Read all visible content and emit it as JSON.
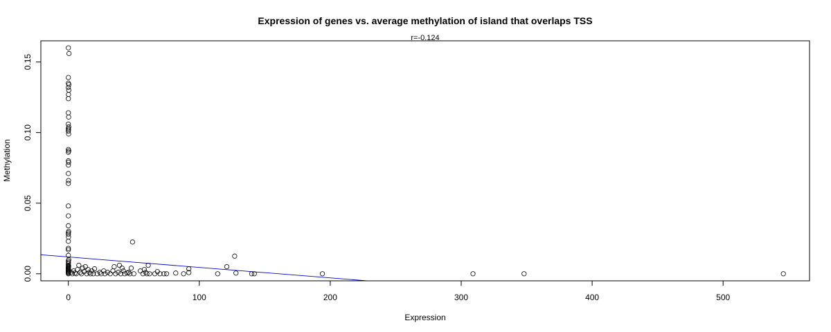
{
  "chart_data": {
    "type": "scatter",
    "title": "Expression of genes vs. average methylation of island that overlaps TSS",
    "subtitle": "r=-0.124",
    "xlabel": "Expression",
    "ylabel": "Methylation",
    "xlim": [
      -21,
      566
    ],
    "ylim": [
      -0.005,
      0.165
    ],
    "x_ticks": [
      0,
      100,
      200,
      300,
      400,
      500
    ],
    "y_ticks": [
      0.0,
      0.05,
      0.1,
      0.15
    ],
    "x_tick_labels": [
      "0",
      "100",
      "200",
      "300",
      "400",
      "500"
    ],
    "y_tick_labels": [
      "0.00",
      "0.05",
      "0.10",
      "0.15"
    ],
    "grid": false,
    "point_color": "#000000",
    "line_color": "#0000cc",
    "regression_line": {
      "intercept": 0.0119,
      "slope": -7.41e-05
    },
    "points": [
      [
        0,
        0.16
      ],
      [
        0.5,
        0.156
      ],
      [
        0,
        0.139
      ],
      [
        0,
        0.135
      ],
      [
        0.4,
        0.134
      ],
      [
        0,
        0.132
      ],
      [
        0.3,
        0.13
      ],
      [
        0.1,
        0.127
      ],
      [
        0,
        0.124
      ],
      [
        0,
        0.114
      ],
      [
        0.2,
        0.111
      ],
      [
        0,
        0.106
      ],
      [
        0.3,
        0.104
      ],
      [
        0,
        0.103
      ],
      [
        0.1,
        0.102
      ],
      [
        0,
        0.101
      ],
      [
        0.2,
        0.099
      ],
      [
        0,
        0.088
      ],
      [
        0.3,
        0.087
      ],
      [
        0,
        0.086
      ],
      [
        0,
        0.08
      ],
      [
        0.2,
        0.079
      ],
      [
        0,
        0.077
      ],
      [
        0,
        0.071
      ],
      [
        0.1,
        0.066
      ],
      [
        0,
        0.064
      ],
      [
        0,
        0.048
      ],
      [
        0,
        0.041
      ],
      [
        0,
        0.034
      ],
      [
        0.2,
        0.03
      ],
      [
        0,
        0.029
      ],
      [
        0,
        0.028
      ],
      [
        0.1,
        0.026
      ],
      [
        0,
        0.023
      ],
      [
        0,
        0.018
      ],
      [
        0,
        0.017
      ],
      [
        0,
        0.013
      ],
      [
        0.3,
        0.01
      ],
      [
        0,
        0.009
      ],
      [
        0.1,
        0.008
      ],
      [
        0,
        0.007
      ],
      [
        0,
        0.006
      ],
      [
        0.2,
        0.0055
      ],
      [
        0,
        0.005
      ],
      [
        0,
        0.0045
      ],
      [
        0,
        0.004
      ],
      [
        0,
        0.0035
      ],
      [
        0,
        0.003
      ],
      [
        0,
        0.0025
      ],
      [
        0,
        0.002
      ],
      [
        0,
        0.0015
      ],
      [
        0,
        0.001
      ],
      [
        0,
        0.0005
      ],
      [
        0,
        0.0
      ],
      [
        2,
        0.001
      ],
      [
        3,
        0.0
      ],
      [
        4,
        0.002
      ],
      [
        5,
        0.0005
      ],
      [
        6,
        0.0
      ],
      [
        7,
        0.003
      ],
      [
        8,
        0.006
      ],
      [
        9,
        0.001
      ],
      [
        10,
        0.0
      ],
      [
        11,
        0.004
      ],
      [
        12,
        0.0015
      ],
      [
        13,
        0.005
      ],
      [
        14,
        0.0
      ],
      [
        15,
        0.003
      ],
      [
        16,
        0.001
      ],
      [
        17,
        0.0
      ],
      [
        18,
        0.002
      ],
      [
        19,
        0.0
      ],
      [
        20,
        0.0035
      ],
      [
        22,
        0.0
      ],
      [
        24,
        0.001
      ],
      [
        25,
        0.0
      ],
      [
        27,
        0.002
      ],
      [
        28,
        0.0
      ],
      [
        30,
        0.001
      ],
      [
        32,
        0.0
      ],
      [
        34,
        0.002
      ],
      [
        35,
        0.005
      ],
      [
        36,
        0.0
      ],
      [
        38,
        0.001
      ],
      [
        39,
        0.006
      ],
      [
        40,
        0.0
      ],
      [
        41,
        0.004
      ],
      [
        42,
        0.002
      ],
      [
        43,
        0.0
      ],
      [
        45,
        0.0005
      ],
      [
        46,
        0.001
      ],
      [
        47,
        0.0
      ],
      [
        48,
        0.004
      ],
      [
        49,
        0.0225
      ],
      [
        50,
        0.0
      ],
      [
        55,
        0.002
      ],
      [
        57,
        0.0
      ],
      [
        58,
        0.003
      ],
      [
        59,
        0.001
      ],
      [
        60,
        0.0
      ],
      [
        61,
        0.006
      ],
      [
        62,
        0.0
      ],
      [
        66,
        0.0
      ],
      [
        68,
        0.0015
      ],
      [
        70,
        0.0
      ],
      [
        73,
        0.0
      ],
      [
        75,
        0.0
      ],
      [
        82,
        0.0005
      ],
      [
        88,
        0.0
      ],
      [
        92,
        0.0035
      ],
      [
        92,
        0.0008
      ],
      [
        114,
        0.0
      ],
      [
        121,
        0.005
      ],
      [
        127,
        0.0125
      ],
      [
        128,
        0.0005
      ],
      [
        140,
        0.0
      ],
      [
        142,
        0.0
      ],
      [
        194,
        0.0
      ],
      [
        309,
        0.0
      ],
      [
        348,
        0.0
      ],
      [
        546,
        0.0
      ]
    ]
  }
}
